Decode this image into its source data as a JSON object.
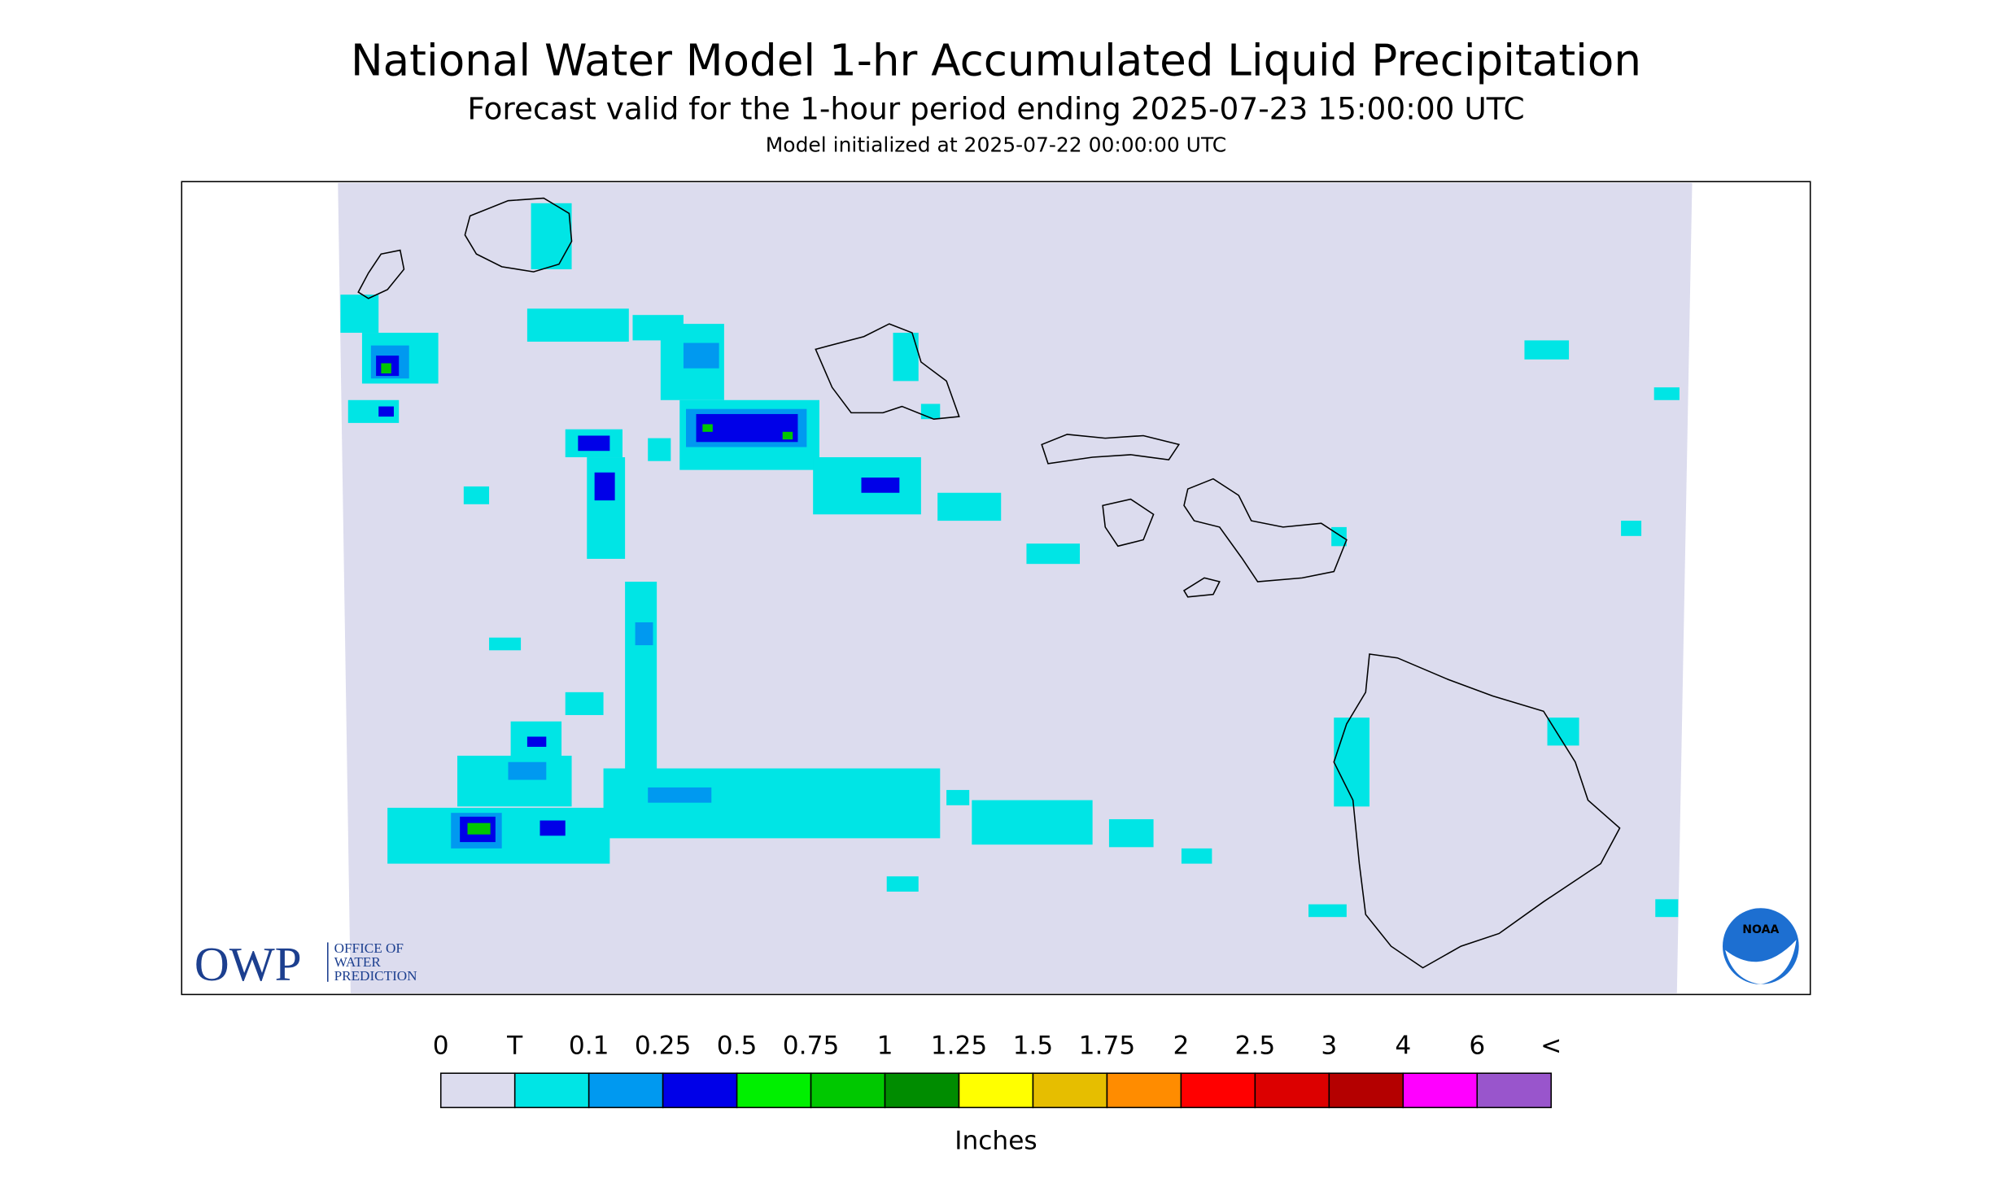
{
  "header": {
    "title": "National Water Model 1-hr Accumulated Liquid Precipitation",
    "subtitle": "Forecast valid for the 1-hour period ending 2025-07-23 15:00:00 UTC",
    "initialized": "Model initialized at 2025-07-22 00:00:00 UTC"
  },
  "legend": {
    "labels": [
      "0",
      "T",
      "0.1",
      "0.25",
      "0.5",
      "0.75",
      "1",
      "1.25",
      "1.5",
      "1.75",
      "2",
      "2.5",
      "3",
      "4",
      "6",
      "<"
    ],
    "colors": [
      "#dcdcee",
      "#00e5e5",
      "#0099f0",
      "#0000e8",
      "#00f000",
      "#00c800",
      "#008c00",
      "#ffff00",
      "#e6be00",
      "#ff8c00",
      "#ff0000",
      "#dc0000",
      "#b40000",
      "#ff00ff",
      "#9955cc"
    ],
    "unit": "Inches"
  },
  "logos": {
    "owp": "OWP",
    "owp_lines": [
      "OFFICE OF",
      "WATER",
      "PREDICTION"
    ],
    "noaa": "NOAA"
  }
}
